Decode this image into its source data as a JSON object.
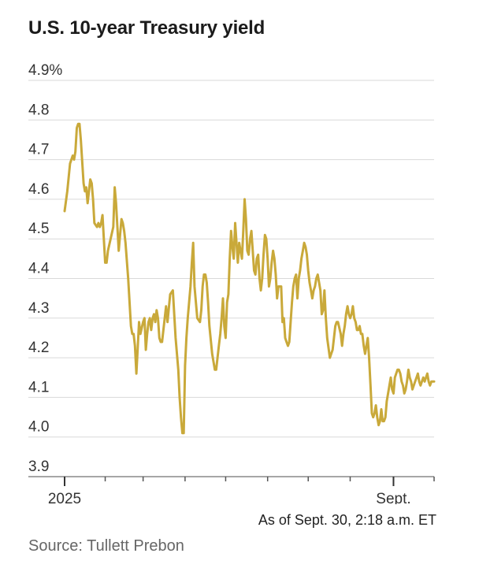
{
  "chart_data": {
    "type": "line",
    "title": "U.S. 10-year Treasury yield",
    "ylim": [
      3.9,
      4.9
    ],
    "yticks": [
      "4.9%",
      "4.8",
      "4.7",
      "4.6",
      "4.5",
      "4.4",
      "4.3",
      "4.2",
      "4.1",
      "4.0",
      "3.9"
    ],
    "ytick_values": [
      4.9,
      4.8,
      4.7,
      4.6,
      4.5,
      4.4,
      4.3,
      4.2,
      4.1,
      4.0,
      3.9
    ],
    "xlim": [
      0,
      273
    ],
    "x_labels": [
      {
        "label": "2025",
        "x": 0
      },
      {
        "label": "Sept.",
        "x": 243
      }
    ],
    "x_minor_ticks": [
      30,
      58,
      89,
      119,
      150,
      180,
      211,
      243,
      273
    ],
    "series": [
      {
        "name": "10-year yield",
        "color": "#c9a93a",
        "x": [
          0,
          2,
          4,
          6,
          7,
          8,
          9,
          10,
          11,
          12,
          14,
          15,
          16,
          17,
          18,
          19,
          20,
          21,
          22,
          24,
          25,
          26,
          27,
          28,
          30,
          31,
          32,
          34,
          36,
          37,
          38,
          40,
          41,
          42,
          43,
          44,
          45,
          47,
          49,
          50,
          51,
          52,
          53,
          55,
          56,
          58,
          59,
          60,
          61,
          62,
          63,
          64,
          65,
          66,
          67,
          68,
          69,
          70,
          71,
          72,
          74,
          75,
          76,
          78,
          80,
          82,
          84,
          85,
          86,
          87,
          88,
          89,
          90,
          91,
          93,
          94,
          95,
          96,
          98,
          100,
          101,
          102,
          103,
          104,
          105,
          106,
          107,
          109,
          110,
          111,
          112,
          113,
          114,
          115,
          116,
          117,
          118,
          119,
          120,
          121,
          122,
          123,
          124,
          125,
          126,
          127,
          128,
          129,
          130,
          131,
          132,
          133,
          134,
          135,
          136,
          137,
          138,
          139,
          140,
          141,
          142,
          143,
          144,
          145,
          146,
          147,
          148,
          149,
          150,
          151,
          152,
          153,
          154,
          155,
          156,
          157,
          158,
          160,
          161,
          162,
          163,
          164,
          165,
          166,
          167,
          168,
          169,
          170,
          171,
          172,
          173,
          174,
          175,
          176,
          177,
          178,
          179,
          180,
          181,
          182,
          183,
          184,
          185,
          186,
          187,
          188,
          189,
          190,
          191,
          192,
          193,
          194,
          196,
          197,
          198,
          199,
          200,
          201,
          202,
          204,
          205,
          206,
          207,
          208,
          209,
          210,
          211,
          212,
          213,
          214,
          215,
          216,
          217,
          218,
          219,
          220,
          221,
          222,
          223,
          224,
          225,
          226,
          227,
          228,
          229,
          230,
          231,
          232,
          233,
          234,
          235,
          236,
          237,
          238,
          239,
          240,
          241,
          242,
          243,
          244,
          245,
          246,
          247,
          248,
          249,
          250,
          251,
          252,
          253,
          254,
          255,
          256,
          257,
          258,
          259,
          260,
          261,
          262,
          263,
          264,
          265,
          266,
          267,
          268,
          269,
          270,
          271,
          272,
          273
        ],
        "values": [
          4.57,
          4.62,
          4.69,
          4.71,
          4.7,
          4.72,
          4.78,
          4.79,
          4.79,
          4.75,
          4.64,
          4.62,
          4.63,
          4.59,
          4.62,
          4.65,
          4.64,
          4.6,
          4.54,
          4.53,
          4.54,
          4.53,
          4.54,
          4.56,
          4.44,
          4.44,
          4.47,
          4.5,
          4.53,
          4.63,
          4.59,
          4.47,
          4.51,
          4.55,
          4.54,
          4.52,
          4.49,
          4.4,
          4.28,
          4.26,
          4.26,
          4.23,
          4.16,
          4.29,
          4.26,
          4.29,
          4.3,
          4.22,
          4.26,
          4.29,
          4.3,
          4.27,
          4.3,
          4.31,
          4.29,
          4.32,
          4.3,
          4.25,
          4.24,
          4.24,
          4.3,
          4.33,
          4.29,
          4.36,
          4.37,
          4.25,
          4.17,
          4.1,
          4.05,
          4.01,
          4.01,
          4.18,
          4.25,
          4.3,
          4.38,
          4.44,
          4.49,
          4.38,
          4.3,
          4.29,
          4.32,
          4.38,
          4.41,
          4.41,
          4.39,
          4.34,
          4.28,
          4.21,
          4.19,
          4.17,
          4.17,
          4.2,
          4.23,
          4.26,
          4.3,
          4.35,
          4.28,
          4.25,
          4.34,
          4.36,
          4.45,
          4.52,
          4.48,
          4.45,
          4.54,
          4.49,
          4.44,
          4.49,
          4.47,
          4.45,
          4.52,
          4.6,
          4.55,
          4.47,
          4.46,
          4.5,
          4.52,
          4.47,
          4.42,
          4.41,
          4.45,
          4.46,
          4.4,
          4.37,
          4.4,
          4.46,
          4.51,
          4.5,
          4.45,
          4.38,
          4.4,
          4.44,
          4.47,
          4.45,
          4.41,
          4.35,
          4.38,
          4.38,
          4.29,
          4.3,
          4.25,
          4.24,
          4.23,
          4.24,
          4.29,
          4.34,
          4.38,
          4.4,
          4.41,
          4.35,
          4.4,
          4.42,
          4.45,
          4.47,
          4.49,
          4.48,
          4.46,
          4.42,
          4.39,
          4.37,
          4.35,
          4.37,
          4.38,
          4.4,
          4.41,
          4.39,
          4.37,
          4.31,
          4.32,
          4.37,
          4.3,
          4.25,
          4.2,
          4.21,
          4.22,
          4.25,
          4.28,
          4.29,
          4.29,
          4.26,
          4.23,
          4.26,
          4.28,
          4.31,
          4.33,
          4.31,
          4.3,
          4.31,
          4.33,
          4.3,
          4.29,
          4.27,
          4.27,
          4.28,
          4.26,
          4.26,
          4.23,
          4.21,
          4.23,
          4.25,
          4.2,
          4.13,
          4.06,
          4.05,
          4.06,
          4.08,
          4.05,
          4.03,
          4.04,
          4.07,
          4.04,
          4.04,
          4.05,
          4.09,
          4.11,
          4.13,
          4.15,
          4.12,
          4.11,
          4.15,
          4.16,
          4.17,
          4.17,
          4.16,
          4.14,
          4.13,
          4.11,
          4.12,
          4.14,
          4.17,
          4.15,
          4.14,
          4.12,
          4.13,
          4.14,
          4.15,
          4.16,
          4.14,
          4.13,
          4.14,
          4.15,
          4.14,
          4.15,
          4.16,
          4.14,
          4.13,
          4.14,
          4.14,
          4.14
        ]
      }
    ],
    "annotation": "As of Sept. 30, 2:18 a.m. ET",
    "source": "Source: Tullett Prebon"
  }
}
